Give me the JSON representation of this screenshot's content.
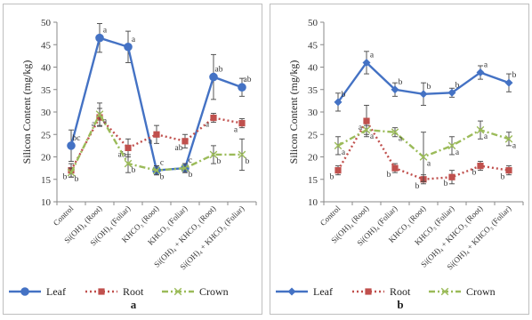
{
  "chart_data": [
    {
      "type": "line",
      "panel_label": "a",
      "ylabel": "Silicon  Content  (mg/kg)",
      "xlabel": "",
      "ylim": [
        10,
        50
      ],
      "yticks": [
        10,
        15,
        20,
        25,
        30,
        35,
        40,
        45,
        50
      ],
      "grid": false,
      "legend_position": "bottom",
      "categories": [
        "Control",
        "Si(OH)₄ (Root)",
        "Si(OH)₄ (Foliar)",
        "KHCO₃ (Root)",
        "KHCO₃ (Foliar)",
        "Si(OH)₄ + KHCO₃ (Root)",
        "Si(OH)₄ + KHCO₃ (Foliar)"
      ],
      "series": [
        {
          "name": "Leaf",
          "color": "#4472c4",
          "style": "solid",
          "marker": "circle",
          "values": [
            22.5,
            46.5,
            44.5,
            17.0,
            17.5,
            37.8,
            35.5
          ],
          "errors": [
            3.5,
            3.2,
            3.5,
            1.0,
            1.0,
            5.0,
            2.0
          ],
          "labels": [
            "bc",
            "a",
            "a",
            "c",
            "c",
            "ab",
            "ab"
          ]
        },
        {
          "name": "Root",
          "color": "#c0504d",
          "style": "dotted",
          "marker": "square",
          "values": [
            17.0,
            28.8,
            22.0,
            25.0,
            23.5,
            28.7,
            27.5
          ],
          "errors": [
            1.5,
            2.0,
            2.0,
            2.0,
            1.5,
            1.0,
            1.0
          ],
          "labels": [
            "b",
            "a",
            "ab",
            "a",
            "ab",
            "a",
            "a"
          ]
        },
        {
          "name": "Crown",
          "color": "#9bbb59",
          "style": "dashdot",
          "marker": "x",
          "values": [
            16.5,
            29.5,
            18.5,
            17.0,
            17.5,
            20.5,
            20.5
          ],
          "errors": [
            1.0,
            2.5,
            2.0,
            1.0,
            1.0,
            2.0,
            3.5
          ],
          "labels": [
            "b",
            "a",
            "b",
            "b",
            "b",
            "b",
            "b"
          ]
        }
      ]
    },
    {
      "type": "line",
      "panel_label": "b",
      "ylabel": "Silicon  Content  (mg/kg)",
      "xlabel": "",
      "ylim": [
        10,
        50
      ],
      "yticks": [
        10,
        15,
        20,
        25,
        30,
        35,
        40,
        45,
        50
      ],
      "grid": false,
      "legend_position": "bottom",
      "categories": [
        "Control",
        "Si(OH)₄ (Root)",
        "Si(OH)₄ (Foliar)",
        "KHCO₃ (Root)",
        "KHCO₃ (Foliar)",
        "Si(OH)₄ + KHCO₃ (Root)",
        "Si(OH)₄ + KHCO₃ (Foliar)"
      ],
      "series": [
        {
          "name": "Leaf",
          "color": "#4472c4",
          "style": "solid",
          "marker": "diamond",
          "values": [
            32.2,
            41.0,
            35.0,
            34.0,
            34.3,
            38.8,
            36.5
          ],
          "errors": [
            2.0,
            2.5,
            1.5,
            2.5,
            1.0,
            1.5,
            2.0
          ],
          "labels": [
            "b",
            "a",
            "b",
            "b",
            "b",
            "a",
            "b"
          ]
        },
        {
          "name": "Root",
          "color": "#c0504d",
          "style": "dotted",
          "marker": "square",
          "values": [
            17.0,
            28.0,
            17.5,
            15.0,
            15.5,
            18.0,
            17.0
          ],
          "errors": [
            1.0,
            3.5,
            1.0,
            1.0,
            1.5,
            1.0,
            1.0
          ],
          "labels": [
            "b",
            "a",
            "b",
            "b",
            "b",
            "b",
            "b"
          ]
        },
        {
          "name": "Crown",
          "color": "#9bbb59",
          "style": "dashdot",
          "marker": "x",
          "values": [
            22.5,
            26.0,
            25.5,
            20.0,
            22.5,
            26.0,
            24.0
          ],
          "errors": [
            2.0,
            1.0,
            1.0,
            5.5,
            2.0,
            2.0,
            1.5
          ],
          "labels": [
            "a",
            "a",
            "a",
            "a",
            "a",
            "a",
            "a"
          ]
        }
      ]
    }
  ]
}
